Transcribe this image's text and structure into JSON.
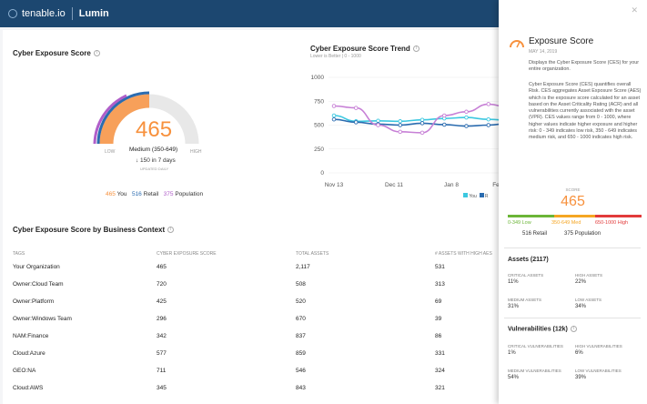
{
  "header": {
    "brand": "tenable.io",
    "product": "Lumin"
  },
  "gauge": {
    "title": "Cyber Exposure Score",
    "score": "465",
    "range": "Medium (350-649)",
    "change": "↓ 150 in 7 days",
    "updated": "UPDATED DAILY",
    "low": "LOW",
    "high": "HIGH",
    "legend": [
      {
        "value": "465",
        "label": "You",
        "color": "#f7913d"
      },
      {
        "value": "516",
        "label": "Retail",
        "color": "#2b6cb0"
      },
      {
        "value": "375",
        "label": "Population",
        "color": "#b05ec9"
      }
    ]
  },
  "trend": {
    "title": "Cyber Exposure Score Trend",
    "subtitle": "Lower is Better | 0 - 1000",
    "legend_you": "You",
    "legend_r": "R"
  },
  "chart_data": {
    "type": "line",
    "title": "Cyber Exposure Score Trend",
    "ylim": [
      0,
      1000
    ],
    "yticks": [
      "1000",
      "750",
      "500",
      "250",
      "0"
    ],
    "xticks": [
      "Nov 13",
      "Dec 11",
      "Jan 8",
      "Fe"
    ],
    "series": [
      {
        "name": "You",
        "color": "#3cc8e0",
        "values": [
          600,
          540,
          545,
          540,
          555,
          570,
          580,
          560,
          550
        ]
      },
      {
        "name": "R",
        "color": "#2b6cb0",
        "values": [
          560,
          530,
          510,
          500,
          520,
          505,
          490,
          500,
          520
        ]
      },
      {
        "name": "",
        "color": "#c780d6",
        "values": [
          700,
          680,
          500,
          430,
          420,
          600,
          640,
          720,
          680
        ]
      }
    ]
  },
  "context": {
    "title": "Cyber Exposure Score by Business Context",
    "headers": [
      "TAGS",
      "CYBER EXPOSURE SCORE",
      "TOTAL ASSETS",
      "# ASSETS WITH HIGH AES"
    ],
    "rows": [
      [
        "Your Organization",
        "465",
        "2,117",
        "531"
      ],
      [
        "Owner:Cloud Team",
        "720",
        "508",
        "313"
      ],
      [
        "Owner:Platform",
        "425",
        "520",
        "69"
      ],
      [
        "Owner:Windows Team",
        "296",
        "670",
        "39"
      ],
      [
        "NAM:Finance",
        "342",
        "837",
        "86"
      ],
      [
        "Cloud:Azure",
        "577",
        "859",
        "331"
      ],
      [
        "GEO:NA",
        "711",
        "546",
        "324"
      ],
      [
        "Cloud:AWS",
        "345",
        "843",
        "321"
      ]
    ]
  },
  "panel": {
    "title": "Exposure Score",
    "date": "MAY 14, 2019",
    "desc1": "Displays the Cyber Exposure Score (CES) for your entire organization.",
    "desc2": "Cyber Exposure Score (CES) quantifies overall Risk. CES aggregates Asset Exposure Score (AES) which is the exposure score calculated for an asset based on the Asset Criticality Rating (ACR) and all vulnerabilities currently associated with the asset (VPR). CES values range from 0 - 1000, where higher values indicate higher exposure and higher risk: 0 - 349 indicates low risk, 350 - 649 indicates medium risk, and 650 - 1000 indicates high risk.",
    "score_label": "SCORE",
    "score": "465",
    "low": "0-349 Low",
    "med": "350-649 Med",
    "high": "650-1000 High",
    "retail": "516 Retail",
    "population": "375 Population",
    "assets_title": "Assets (2117)",
    "assets": [
      {
        "label": "CRITICAL ASSETS",
        "value": "11%"
      },
      {
        "label": "HIGH ASSETS",
        "value": "22%"
      },
      {
        "label": "MEDIUM ASSETS",
        "value": "31%"
      },
      {
        "label": "LOW ASSETS",
        "value": "34%"
      }
    ],
    "vuln_title": "Vulnerabilities (12k)",
    "vulns": [
      {
        "label": "CRITICAL VULNERABILITIES",
        "value": "1%"
      },
      {
        "label": "HIGH VULNERABILITIES",
        "value": "6%"
      },
      {
        "label": "MEDIUM VULNERABILITIES",
        "value": "54%"
      },
      {
        "label": "LOW VULNERABILITIES",
        "value": "39%"
      }
    ]
  }
}
